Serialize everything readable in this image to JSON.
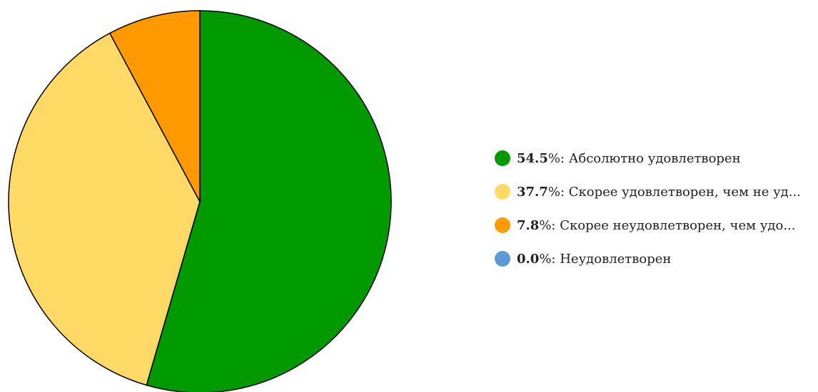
{
  "chart_data": {
    "type": "pie",
    "title": "",
    "slices": [
      {
        "value": 54.5,
        "pct_label": "54.5",
        "label": "Абсолютно удовлетворен",
        "color": "#009900"
      },
      {
        "value": 37.7,
        "pct_label": "37.7",
        "label": "Скорее удовлетворен, чем не уд...",
        "color": "#ffd966"
      },
      {
        "value": 7.8,
        "pct_label": "7.8",
        "label": "Скорее неудовлетворен, чем удо...",
        "color": "#ff9900"
      },
      {
        "value": 0.0,
        "pct_label": "0.0",
        "label": "Неудовлетворен",
        "color": "#5b9bd5"
      }
    ],
    "legend_position": "right",
    "stroke_color": "#000000"
  }
}
